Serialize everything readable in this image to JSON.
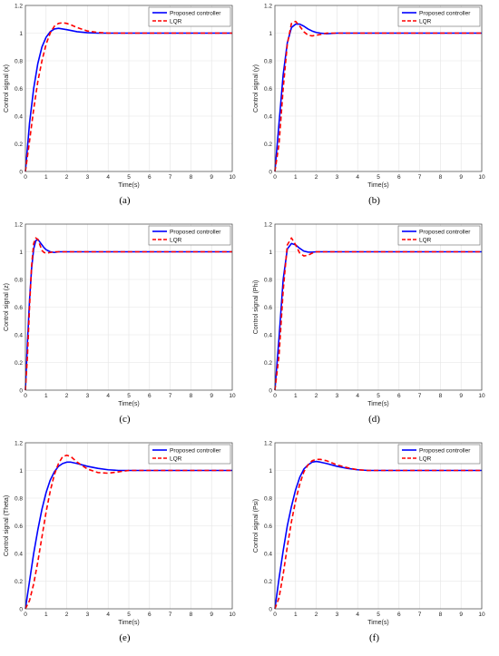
{
  "chart_data": [
    {
      "type": "line",
      "caption": "(a)",
      "xlabel": "Time(s)",
      "ylabel": "Control signal (x)",
      "xlim": [
        0,
        10
      ],
      "ylim": [
        0,
        1.2
      ],
      "xticks": [
        0,
        1,
        2,
        3,
        4,
        5,
        6,
        7,
        8,
        9,
        10
      ],
      "yticks": [
        0,
        0.2,
        0.4,
        0.6,
        0.8,
        1,
        1.2
      ],
      "grid": true,
      "legend": "top-right",
      "series": [
        {
          "name": "Proposed controller",
          "color": "#0000ff",
          "style": "solid",
          "x": [
            0,
            0.2,
            0.4,
            0.6,
            0.8,
            1,
            1.2,
            1.4,
            1.6,
            1.8,
            2,
            2.5,
            3,
            3.5,
            4,
            5,
            6,
            7,
            8,
            9,
            10
          ],
          "y": [
            0,
            0.35,
            0.6,
            0.78,
            0.9,
            0.97,
            1.01,
            1.03,
            1.035,
            1.03,
            1.025,
            1.01,
            1.003,
            1.0,
            1.0,
            1.0,
            1.0,
            1.0,
            1.0,
            1.0,
            1.0
          ]
        },
        {
          "name": "LQR",
          "color": "#ff0000",
          "style": "dashed",
          "x": [
            0,
            0.2,
            0.4,
            0.6,
            0.8,
            1,
            1.2,
            1.4,
            1.6,
            1.8,
            2,
            2.2,
            2.5,
            3,
            3.5,
            4,
            5,
            6,
            7,
            8,
            9,
            10
          ],
          "y": [
            0,
            0.22,
            0.45,
            0.65,
            0.8,
            0.92,
            1.0,
            1.05,
            1.07,
            1.075,
            1.07,
            1.06,
            1.04,
            1.015,
            1.005,
            1.0,
            1.0,
            1.0,
            1.0,
            1.0,
            1.0,
            1.0
          ]
        }
      ]
    },
    {
      "type": "line",
      "caption": "(b)",
      "xlabel": "Time(s)",
      "ylabel": "Control signal (y)",
      "xlim": [
        0,
        10
      ],
      "ylim": [
        0,
        1.2
      ],
      "xticks": [
        0,
        1,
        2,
        3,
        4,
        5,
        6,
        7,
        8,
        9,
        10
      ],
      "yticks": [
        0,
        0.2,
        0.4,
        0.6,
        0.8,
        1,
        1.2
      ],
      "grid": true,
      "legend": "top-right",
      "series": [
        {
          "name": "Proposed controller",
          "color": "#0000ff",
          "style": "solid",
          "x": [
            0,
            0.2,
            0.4,
            0.6,
            0.8,
            1,
            1.2,
            1.4,
            1.6,
            1.8,
            2,
            2.2,
            2.5,
            3,
            4,
            5,
            6,
            7,
            8,
            9,
            10
          ],
          "y": [
            0,
            0.35,
            0.7,
            0.93,
            1.04,
            1.065,
            1.065,
            1.05,
            1.03,
            1.015,
            1.005,
            1.0,
            0.995,
            1.0,
            1.0,
            1.0,
            1.0,
            1.0,
            1.0,
            1.0,
            1.0
          ]
        },
        {
          "name": "LQR",
          "color": "#ff0000",
          "style": "dashed",
          "x": [
            0,
            0.2,
            0.4,
            0.6,
            0.8,
            1,
            1.2,
            1.4,
            1.6,
            1.8,
            2,
            2.2,
            2.5,
            3,
            4,
            5,
            6,
            7,
            8,
            9,
            10
          ],
          "y": [
            0,
            0.2,
            0.6,
            0.92,
            1.07,
            1.085,
            1.05,
            1.01,
            0.985,
            0.98,
            0.985,
            0.99,
            1.0,
            1.0,
            1.0,
            1.0,
            1.0,
            1.0,
            1.0,
            1.0,
            1.0
          ]
        }
      ]
    },
    {
      "type": "line",
      "caption": "(c)",
      "xlabel": "Time(s)",
      "ylabel": "Control signal (z)",
      "xlim": [
        0,
        10
      ],
      "ylim": [
        0,
        1.2
      ],
      "xticks": [
        0,
        1,
        2,
        3,
        4,
        5,
        6,
        7,
        8,
        9,
        10
      ],
      "yticks": [
        0,
        0.2,
        0.4,
        0.6,
        0.8,
        1,
        1.2
      ],
      "grid": true,
      "legend": "top-right",
      "series": [
        {
          "name": "Proposed controller",
          "color": "#0000ff",
          "style": "solid",
          "x": [
            0,
            0.1,
            0.2,
            0.3,
            0.4,
            0.5,
            0.6,
            0.7,
            0.8,
            0.9,
            1,
            1.2,
            1.4,
            1.6,
            2,
            3,
            4,
            5,
            6,
            7,
            8,
            9,
            10
          ],
          "y": [
            0,
            0.35,
            0.65,
            0.88,
            1.02,
            1.08,
            1.09,
            1.07,
            1.05,
            1.03,
            1.015,
            1.0,
            0.995,
            1.0,
            1.0,
            1.0,
            1.0,
            1.0,
            1.0,
            1.0,
            1.0,
            1.0,
            1.0
          ]
        },
        {
          "name": "LQR",
          "color": "#ff0000",
          "style": "dashed",
          "x": [
            0,
            0.1,
            0.2,
            0.3,
            0.4,
            0.5,
            0.6,
            0.7,
            0.8,
            0.9,
            1,
            1.2,
            1.4,
            1.6,
            2,
            3,
            4,
            5,
            6,
            7,
            8,
            9,
            10
          ],
          "y": [
            0,
            0.25,
            0.6,
            0.9,
            1.06,
            1.1,
            1.09,
            1.05,
            1.01,
            0.995,
            0.99,
            0.995,
            1.0,
            1.0,
            1.0,
            1.0,
            1.0,
            1.0,
            1.0,
            1.0,
            1.0,
            1.0,
            1.0
          ]
        }
      ]
    },
    {
      "type": "line",
      "caption": "(d)",
      "xlabel": "Time(s)",
      "ylabel": "Control signal (Phi)",
      "xlim": [
        0,
        10
      ],
      "ylim": [
        0,
        1.2
      ],
      "xticks": [
        0,
        1,
        2,
        3,
        4,
        5,
        6,
        7,
        8,
        9,
        10
      ],
      "yticks": [
        0,
        0.2,
        0.4,
        0.6,
        0.8,
        1,
        1.2
      ],
      "grid": true,
      "legend": "top-right",
      "series": [
        {
          "name": "Proposed controller",
          "color": "#0000ff",
          "style": "solid",
          "x": [
            0,
            0.2,
            0.4,
            0.6,
            0.8,
            1,
            1.2,
            1.4,
            1.6,
            1.8,
            2,
            2.5,
            3,
            4,
            5,
            6,
            7,
            8,
            9,
            10
          ],
          "y": [
            0,
            0.38,
            0.8,
            1.02,
            1.06,
            1.05,
            1.025,
            1.005,
            0.998,
            0.997,
            1.0,
            1.0,
            1.0,
            1.0,
            1.0,
            1.0,
            1.0,
            1.0,
            1.0,
            1.0
          ]
        },
        {
          "name": "LQR",
          "color": "#ff0000",
          "style": "dashed",
          "x": [
            0,
            0.2,
            0.4,
            0.6,
            0.8,
            1,
            1.2,
            1.4,
            1.6,
            1.8,
            2,
            2.5,
            3,
            4,
            5,
            6,
            7,
            8,
            9,
            10
          ],
          "y": [
            0,
            0.25,
            0.72,
            1.05,
            1.1,
            1.05,
            0.99,
            0.97,
            0.975,
            0.99,
            1.0,
            1.0,
            1.0,
            1.0,
            1.0,
            1.0,
            1.0,
            1.0,
            1.0,
            1.0
          ]
        }
      ]
    },
    {
      "type": "line",
      "caption": "(e)",
      "xlabel": "Time(s)",
      "ylabel": "Control signal (Theta)",
      "xlim": [
        0,
        10
      ],
      "ylim": [
        0,
        1.2
      ],
      "xticks": [
        0,
        1,
        2,
        3,
        4,
        5,
        6,
        7,
        8,
        9,
        10
      ],
      "yticks": [
        0,
        0.2,
        0.4,
        0.6,
        0.8,
        1,
        1.2
      ],
      "grid": true,
      "legend": "top-right",
      "series": [
        {
          "name": "Proposed controller",
          "color": "#0000ff",
          "style": "solid",
          "x": [
            0,
            0.2,
            0.4,
            0.6,
            0.8,
            1,
            1.2,
            1.4,
            1.6,
            1.8,
            2,
            2.2,
            2.5,
            3,
            3.5,
            4,
            4.5,
            5,
            6,
            7,
            8,
            9,
            10
          ],
          "y": [
            0,
            0.2,
            0.4,
            0.57,
            0.72,
            0.84,
            0.93,
            0.99,
            1.03,
            1.05,
            1.06,
            1.06,
            1.05,
            1.03,
            1.015,
            1.005,
            1.0,
            1.0,
            1.0,
            1.0,
            1.0,
            1.0,
            1.0
          ]
        },
        {
          "name": "LQR",
          "color": "#ff0000",
          "style": "dashed",
          "x": [
            0,
            0.2,
            0.4,
            0.6,
            0.8,
            1,
            1.2,
            1.4,
            1.6,
            1.8,
            2,
            2.2,
            2.5,
            3,
            3.5,
            4,
            4.5,
            5,
            6,
            7,
            8,
            9,
            10
          ],
          "y": [
            0,
            0.06,
            0.18,
            0.34,
            0.52,
            0.7,
            0.85,
            0.97,
            1.05,
            1.1,
            1.11,
            1.1,
            1.06,
            1.01,
            0.985,
            0.98,
            0.99,
            1.0,
            1.0,
            1.0,
            1.0,
            1.0,
            1.0
          ]
        }
      ]
    },
    {
      "type": "line",
      "caption": "(f)",
      "xlabel": "Time(s)",
      "ylabel": "Control signal (Psi)",
      "xlim": [
        0,
        10
      ],
      "ylim": [
        0,
        1.2
      ],
      "xticks": [
        0,
        1,
        2,
        3,
        4,
        5,
        6,
        7,
        8,
        9,
        10
      ],
      "yticks": [
        0,
        0.2,
        0.4,
        0.6,
        0.8,
        1,
        1.2
      ],
      "grid": true,
      "legend": "top-right",
      "series": [
        {
          "name": "Proposed controller",
          "color": "#0000ff",
          "style": "solid",
          "x": [
            0,
            0.2,
            0.4,
            0.6,
            0.8,
            1,
            1.2,
            1.4,
            1.6,
            1.8,
            2,
            2.2,
            2.5,
            3,
            3.5,
            4,
            4.5,
            5,
            6,
            7,
            8,
            9,
            10
          ],
          "y": [
            0,
            0.22,
            0.42,
            0.6,
            0.74,
            0.86,
            0.95,
            1.01,
            1.04,
            1.06,
            1.065,
            1.06,
            1.05,
            1.03,
            1.015,
            1.005,
            1.0,
            1.0,
            1.0,
            1.0,
            1.0,
            1.0,
            1.0
          ]
        },
        {
          "name": "LQR",
          "color": "#ff0000",
          "style": "dashed",
          "x": [
            0,
            0.2,
            0.4,
            0.6,
            0.8,
            1,
            1.2,
            1.4,
            1.6,
            1.8,
            2,
            2.2,
            2.5,
            3,
            3.5,
            4,
            4.5,
            5,
            6,
            7,
            8,
            9,
            10
          ],
          "y": [
            0,
            0.08,
            0.25,
            0.45,
            0.63,
            0.78,
            0.9,
            0.99,
            1.04,
            1.07,
            1.08,
            1.08,
            1.07,
            1.04,
            1.02,
            1.005,
            1.0,
            1.0,
            1.0,
            1.0,
            1.0,
            1.0,
            1.0
          ]
        }
      ]
    }
  ]
}
